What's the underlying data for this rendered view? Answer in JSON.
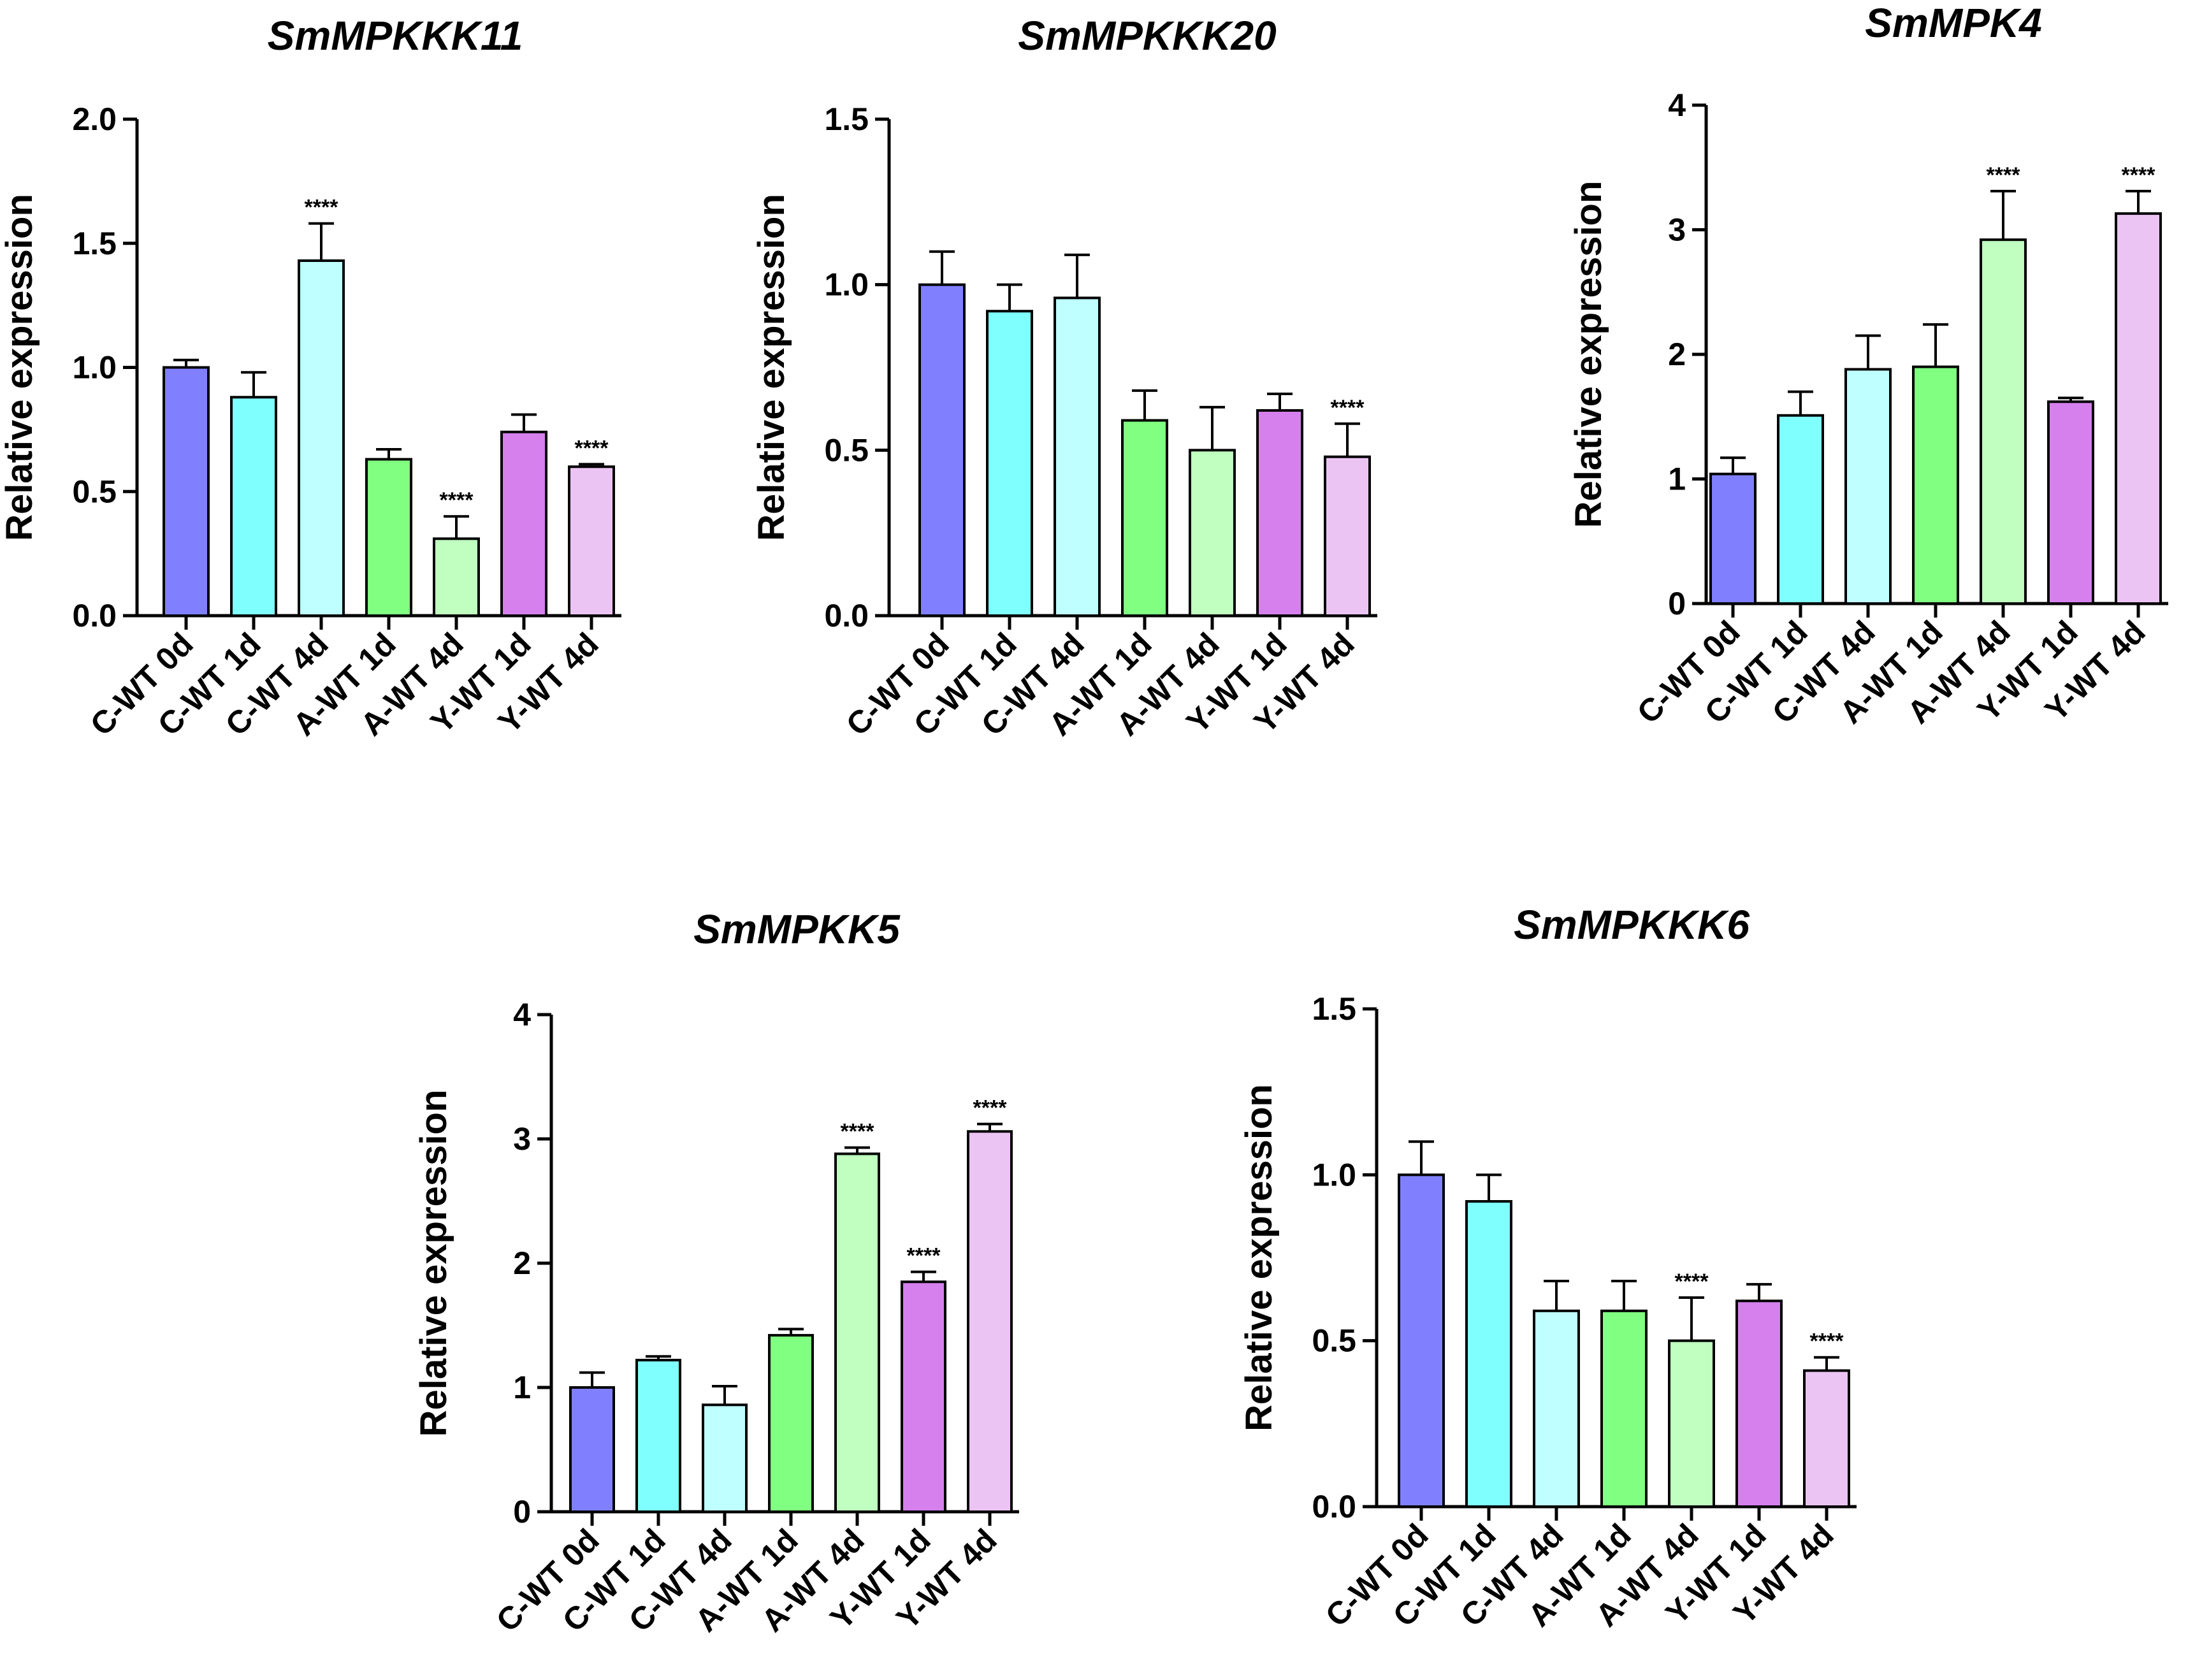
{
  "colors": [
    "#8080ff",
    "#80ffff",
    "#c0ffff",
    "#80ff80",
    "#c0ffc0",
    "#d580ed",
    "#ecc4f4"
  ],
  "chart_data": [
    {
      "type": "bar",
      "title": "SmMPKKK11",
      "ylabel": "Relative expression",
      "categories": [
        "C-WT 0d",
        "C-WT 1d",
        "C-WT 4d",
        "A-WT 1d",
        "A-WT 4d",
        "Y-WT 1d",
        "Y-WT 4d"
      ],
      "values": [
        1.0,
        0.88,
        1.43,
        0.63,
        0.31,
        0.74,
        0.6
      ],
      "errors": [
        0.03,
        0.1,
        0.15,
        0.04,
        0.09,
        0.07,
        0.01
      ],
      "significance": [
        "",
        "",
        "****",
        "",
        "****",
        "",
        "****"
      ],
      "ylim": [
        0,
        2.0
      ],
      "yticks": [
        "0.0",
        "0.5",
        "1.0",
        "1.5",
        "2.0"
      ]
    },
    {
      "type": "bar",
      "title": "SmMPKKK20",
      "ylabel": "Relative expression",
      "categories": [
        "C-WT 0d",
        "C-WT 1d",
        "C-WT 4d",
        "A-WT 1d",
        "A-WT 4d",
        "Y-WT 1d",
        "Y-WT 4d"
      ],
      "values": [
        1.0,
        0.92,
        0.96,
        0.59,
        0.5,
        0.62,
        0.48
      ],
      "errors": [
        0.1,
        0.08,
        0.13,
        0.09,
        0.13,
        0.05,
        0.1
      ],
      "significance": [
        "",
        "",
        "",
        "",
        "",
        "",
        "****"
      ],
      "ylim": [
        0,
        1.5
      ],
      "yticks": [
        "0.0",
        "0.5",
        "1.0",
        "1.5"
      ]
    },
    {
      "type": "bar",
      "title": "SmMPK4",
      "ylabel": "Relative expression",
      "categories": [
        "C-WT 0d",
        "C-WT 1d",
        "C-WT 4d",
        "A-WT 1d",
        "A-WT 4d",
        "Y-WT 1d",
        "Y-WT 4d"
      ],
      "values": [
        1.04,
        1.51,
        1.88,
        1.9,
        2.92,
        1.62,
        3.13
      ],
      "errors": [
        0.13,
        0.19,
        0.27,
        0.34,
        0.39,
        0.03,
        0.18
      ],
      "significance": [
        "",
        "",
        "",
        "",
        "****",
        "",
        "****"
      ],
      "ylim": [
        0,
        4
      ],
      "yticks": [
        "0",
        "1",
        "2",
        "3",
        "4"
      ]
    },
    {
      "type": "bar",
      "title": "SmMPKK5",
      "ylabel": "Relative expression",
      "categories": [
        "C-WT 0d",
        "C-WT 1d",
        "C-WT 4d",
        "A-WT 1d",
        "A-WT 4d",
        "Y-WT 1d",
        "Y-WT 4d"
      ],
      "values": [
        1.0,
        1.22,
        0.86,
        1.42,
        2.88,
        1.85,
        3.06
      ],
      "errors": [
        0.12,
        0.03,
        0.15,
        0.05,
        0.05,
        0.08,
        0.06
      ],
      "significance": [
        "",
        "",
        "",
        "",
        "****",
        "****",
        "****"
      ],
      "ylim": [
        0,
        4
      ],
      "yticks": [
        "0",
        "1",
        "2",
        "3",
        "4"
      ]
    },
    {
      "type": "bar",
      "title": "SmMPKKK6",
      "ylabel": "Relative expression",
      "categories": [
        "C-WT 0d",
        "C-WT 1d",
        "C-WT 4d",
        "A-WT 1d",
        "A-WT 4d",
        "Y-WT 1d",
        "Y-WT 4d"
      ],
      "values": [
        1.0,
        0.92,
        0.59,
        0.59,
        0.5,
        0.62,
        0.41
      ],
      "errors": [
        0.1,
        0.08,
        0.09,
        0.09,
        0.13,
        0.05,
        0.04
      ],
      "significance": [
        "",
        "",
        "",
        "",
        "****",
        "",
        "****"
      ],
      "ylim": [
        0,
        1.5
      ],
      "yticks": [
        "0.0",
        "0.5",
        "1.0",
        "1.5"
      ]
    }
  ]
}
